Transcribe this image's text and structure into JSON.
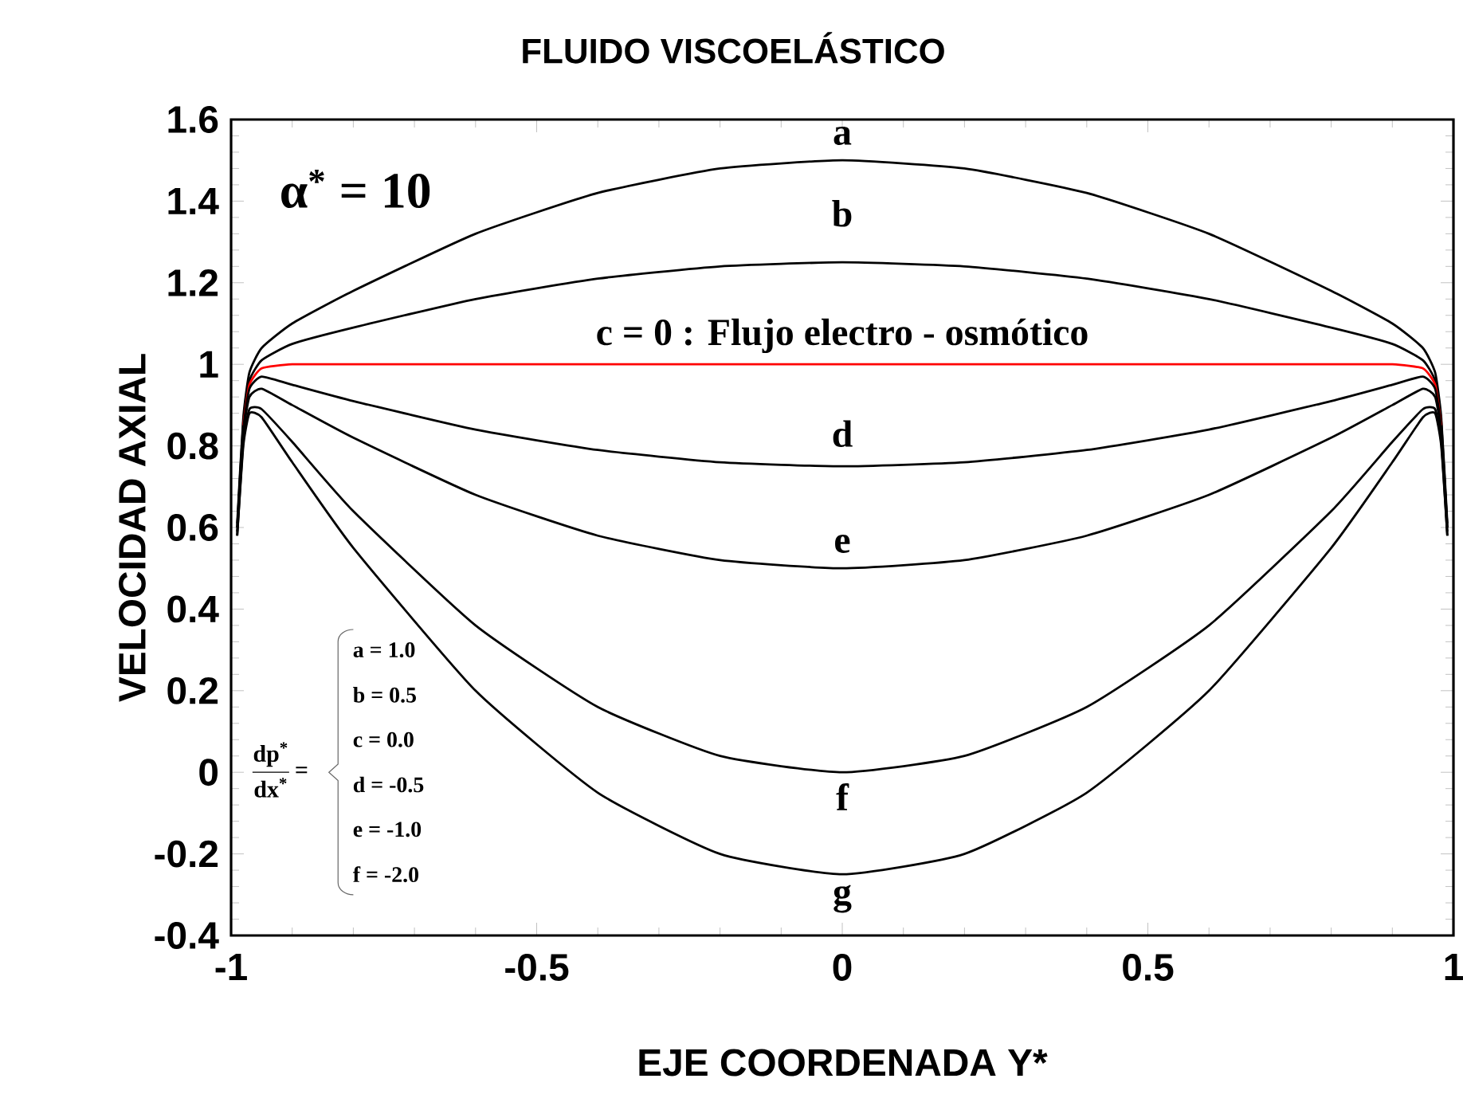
{
  "chart_data": {
    "type": "line",
    "title": "FLUIDO VISCOELÁSTICO",
    "xlabel": "EJE COORDENADA Y*",
    "ylabel": "VELOCIDAD  AXIAL",
    "x": [
      -0.99,
      -0.98,
      -0.97,
      -0.95,
      -0.9,
      -0.8,
      -0.6,
      -0.4,
      -0.2,
      0,
      0.2,
      0.4,
      0.6,
      0.8,
      0.9,
      0.95,
      0.97,
      0.98,
      0.99
    ],
    "series": [
      {
        "name": "a",
        "color": "#000000",
        "values": [
          0.61,
          0.87,
          0.98,
          1.04,
          1.1,
          1.18,
          1.32,
          1.42,
          1.48,
          1.5,
          1.48,
          1.42,
          1.32,
          1.18,
          1.1,
          1.04,
          0.98,
          0.87,
          0.61
        ]
      },
      {
        "name": "b",
        "color": "#000000",
        "values": [
          0.6,
          0.86,
          0.96,
          1.01,
          1.05,
          1.09,
          1.16,
          1.21,
          1.24,
          1.25,
          1.24,
          1.21,
          1.16,
          1.09,
          1.05,
          1.01,
          0.96,
          0.86,
          0.6
        ]
      },
      {
        "name": "c = 0 : Flujo electro - osmótico",
        "color": "#ff0000",
        "values": [
          null,
          0.85,
          0.95,
          0.99,
          1,
          1,
          1,
          1,
          1,
          1,
          1,
          1,
          1,
          1,
          1,
          0.99,
          0.95,
          0.85,
          null
        ]
      },
      {
        "name": "d",
        "color": "#000000",
        "values": [
          0.6,
          0.84,
          0.94,
          0.97,
          0.95,
          0.91,
          0.84,
          0.79,
          0.76,
          0.75,
          0.76,
          0.79,
          0.84,
          0.91,
          0.95,
          0.97,
          0.94,
          0.84,
          0.6
        ]
      },
      {
        "name": "e",
        "color": "#000000",
        "values": [
          0.59,
          0.83,
          0.92,
          0.94,
          0.9,
          0.82,
          0.68,
          0.58,
          0.52,
          0.5,
          0.52,
          0.58,
          0.68,
          0.82,
          0.9,
          0.94,
          0.92,
          0.83,
          0.59
        ]
      },
      {
        "name": "f",
        "color": "#000000",
        "values": [
          0.58,
          0.81,
          0.89,
          0.89,
          0.81,
          0.64,
          0.36,
          0.16,
          0.04,
          0,
          0.04,
          0.16,
          0.36,
          0.64,
          0.81,
          0.89,
          0.89,
          0.81,
          0.58
        ]
      },
      {
        "name": "g",
        "color": "#000000",
        "values": [
          0.58,
          0.8,
          0.88,
          0.87,
          0.76,
          0.55,
          0.2,
          -0.05,
          -0.2,
          -0.25,
          -0.2,
          -0.05,
          0.2,
          0.55,
          0.76,
          0.87,
          0.88,
          0.8,
          0.58
        ]
      }
    ],
    "xlim": [
      -1,
      1
    ],
    "ylim": [
      -0.4,
      1.6
    ],
    "xticks": [
      -1,
      -0.5,
      0,
      0.5,
      1
    ],
    "yticks": [
      -0.4,
      -0.2,
      0,
      0.2,
      0.4,
      0.6,
      0.8,
      1,
      1.2,
      1.4,
      1.6
    ],
    "grid": false,
    "marker": "none",
    "line_style": "solid",
    "annotations": [
      "α$^{*}$ = 10",
      "dp$^{*}$",
      "dx$^{*}$",
      "=",
      "a = 1.0",
      "b = 0.5",
      "c = 0.0",
      "d = -0.5",
      "e = -1.0",
      "f = -2.0"
    ]
  }
}
